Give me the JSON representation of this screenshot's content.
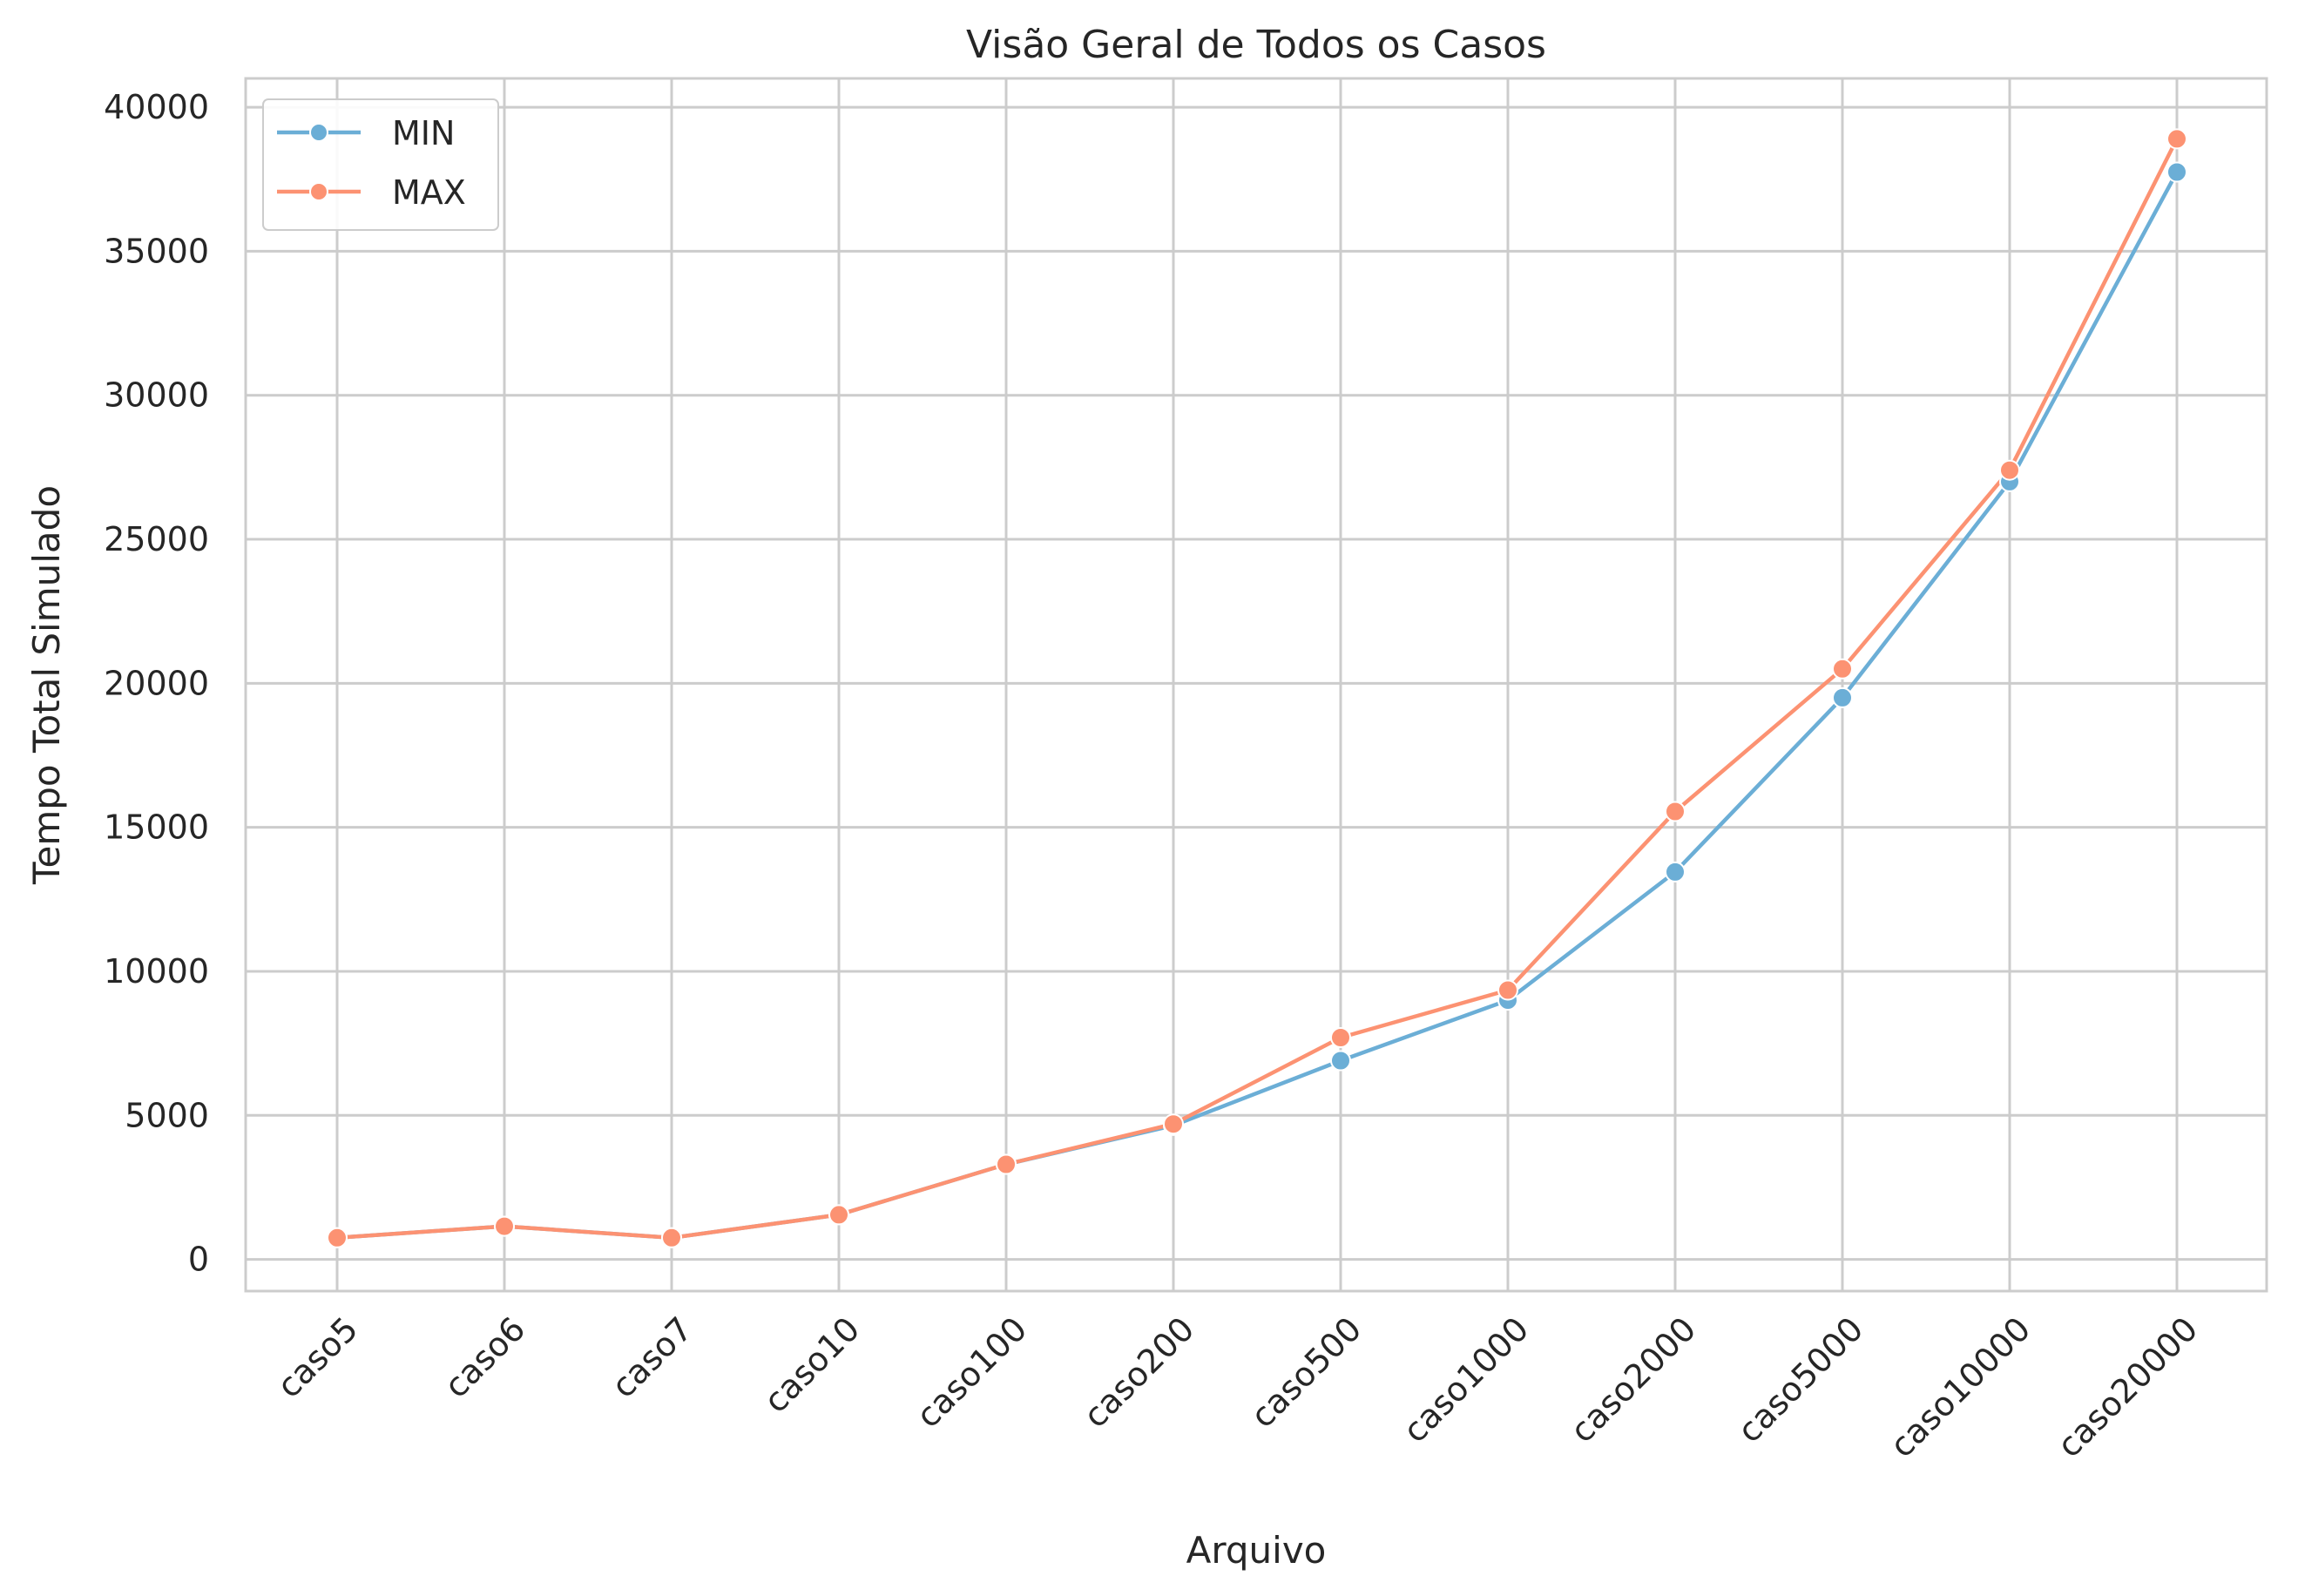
{
  "chart_data": {
    "type": "line",
    "title": "Visão Geral de Todos os Casos",
    "xlabel": "Arquivo",
    "ylabel": "Tempo Total Simulado",
    "categories": [
      "caso5",
      "caso6",
      "caso7",
      "caso10",
      "caso100",
      "caso200",
      "caso500",
      "caso1000",
      "caso2000",
      "caso5000",
      "caso10000",
      "caso20000"
    ],
    "series": [
      {
        "name": "MIN",
        "color": "#6baed6",
        "values": [
          750,
          1150,
          750,
          1550,
          3300,
          4650,
          6900,
          9000,
          13450,
          19500,
          27000,
          37750
        ]
      },
      {
        "name": "MAX",
        "color": "#fc9272",
        "values": [
          750,
          1150,
          750,
          1550,
          3300,
          4700,
          7700,
          9350,
          15550,
          20500,
          27400,
          38900
        ]
      }
    ],
    "ylim": [
      -1100,
      41000
    ],
    "yticks": [
      "0",
      "5000",
      "10000",
      "15000",
      "20000",
      "25000",
      "30000",
      "35000",
      "40000"
    ],
    "grid": true,
    "legend_position": "top-left"
  }
}
